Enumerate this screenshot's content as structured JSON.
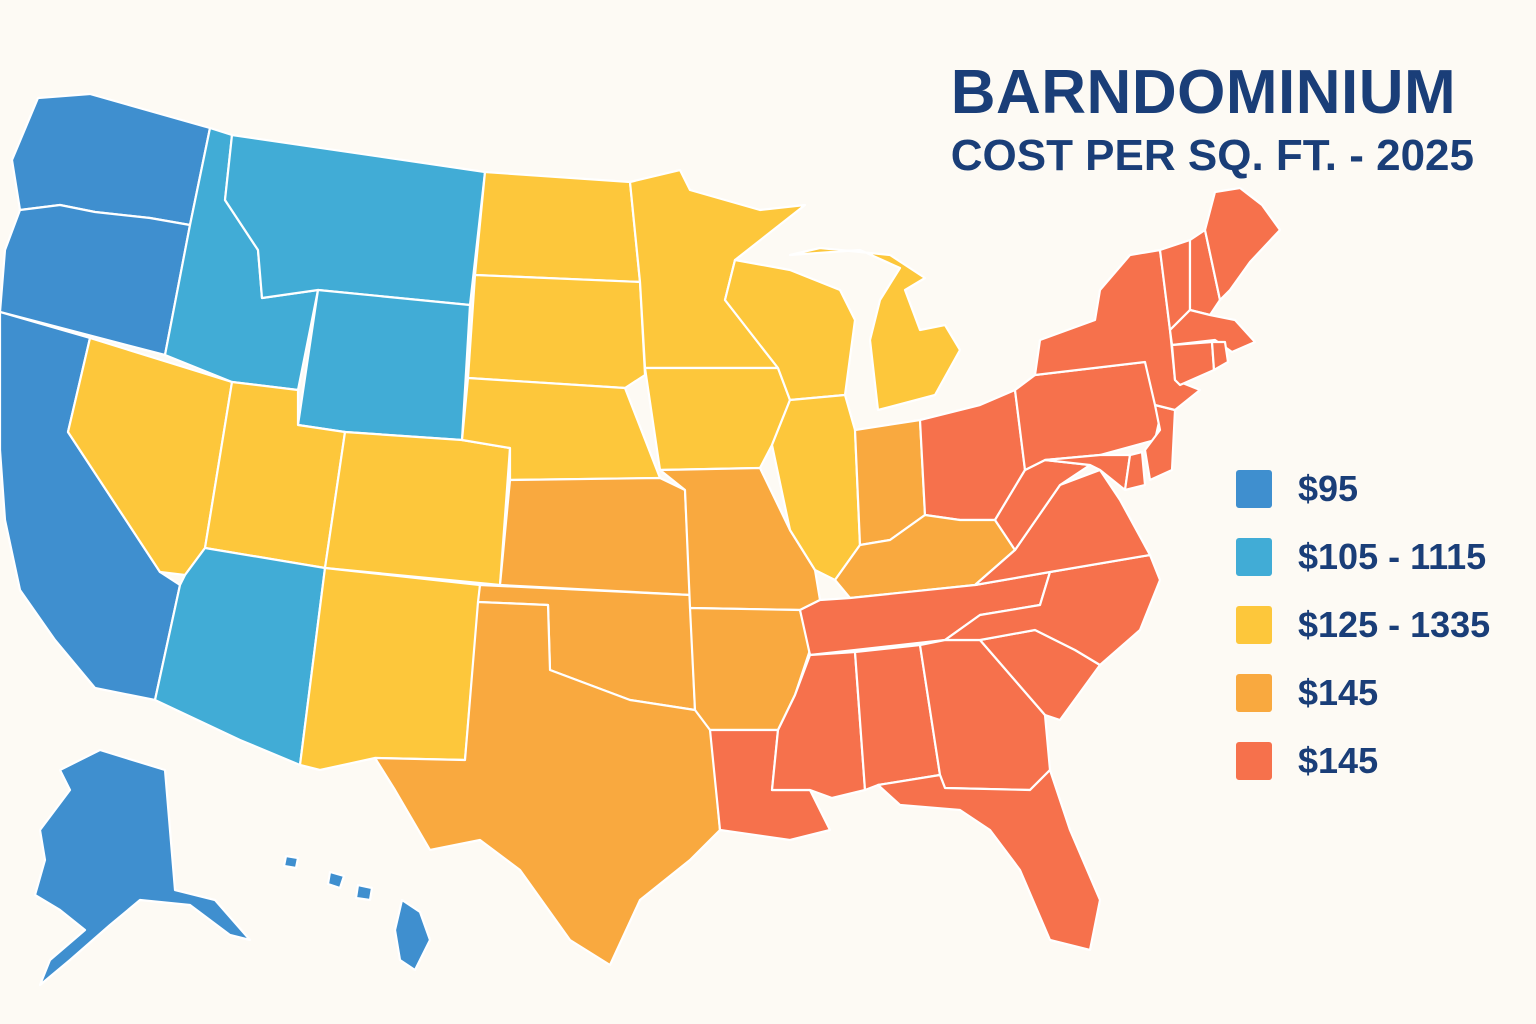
{
  "title": {
    "line1": "BARNDOMINIUM",
    "line2": "COST PER SQ. FT. - 2025"
  },
  "colors": {
    "tier1": "#3f8fcf",
    "tier2": "#41acd6",
    "tier3": "#fdc73b",
    "tier4": "#f9a93f",
    "tier5": "#f6714c"
  },
  "legend": [
    {
      "label": "$95",
      "color": "#3f8fcf"
    },
    {
      "label": "$105 - 1115",
      "color": "#41acd6"
    },
    {
      "label": "$125 - 1335",
      "color": "#fdc73b"
    },
    {
      "label": "$145",
      "color": "#f9a93f"
    },
    {
      "label": "$145",
      "color": "#f6714c"
    }
  ],
  "regions": [
    {
      "name": "Washington",
      "tier": 1
    },
    {
      "name": "Oregon",
      "tier": 1
    },
    {
      "name": "California",
      "tier": 1
    },
    {
      "name": "Alaska",
      "tier": 1
    },
    {
      "name": "Hawaii",
      "tier": 1
    },
    {
      "name": "Idaho",
      "tier": 2
    },
    {
      "name": "Montana",
      "tier": 2
    },
    {
      "name": "Wyoming",
      "tier": 2
    },
    {
      "name": "Arizona",
      "tier": 2
    },
    {
      "name": "Nevada",
      "tier": 3
    },
    {
      "name": "Utah",
      "tier": 3
    },
    {
      "name": "Colorado",
      "tier": 3
    },
    {
      "name": "New Mexico",
      "tier": 3
    },
    {
      "name": "North Dakota",
      "tier": 3
    },
    {
      "name": "South Dakota",
      "tier": 3
    },
    {
      "name": "Nebraska",
      "tier": 3
    },
    {
      "name": "Minnesota",
      "tier": 3
    },
    {
      "name": "Iowa",
      "tier": 3
    },
    {
      "name": "Wisconsin",
      "tier": 3
    },
    {
      "name": "Michigan",
      "tier": 3
    },
    {
      "name": "Illinois",
      "tier": 3
    },
    {
      "name": "Kansas",
      "tier": 4
    },
    {
      "name": "Oklahoma",
      "tier": 4
    },
    {
      "name": "Texas",
      "tier": 4
    },
    {
      "name": "Missouri",
      "tier": 4
    },
    {
      "name": "Arkansas",
      "tier": 4
    },
    {
      "name": "Indiana",
      "tier": 4
    },
    {
      "name": "Kentucky",
      "tier": 4
    },
    {
      "name": "Louisiana",
      "tier": 5
    },
    {
      "name": "Mississippi",
      "tier": 5
    },
    {
      "name": "Alabama",
      "tier": 5
    },
    {
      "name": "Georgia",
      "tier": 5
    },
    {
      "name": "Florida",
      "tier": 5
    },
    {
      "name": "Tennessee",
      "tier": 5
    },
    {
      "name": "South Carolina",
      "tier": 5
    },
    {
      "name": "North Carolina",
      "tier": 5
    },
    {
      "name": "Virginia",
      "tier": 5
    },
    {
      "name": "West Virginia",
      "tier": 5
    },
    {
      "name": "Ohio",
      "tier": 5
    },
    {
      "name": "Pennsylvania",
      "tier": 5
    },
    {
      "name": "New York",
      "tier": 5
    },
    {
      "name": "New Jersey",
      "tier": 5
    },
    {
      "name": "Delaware",
      "tier": 5
    },
    {
      "name": "Maryland",
      "tier": 5
    },
    {
      "name": "Connecticut",
      "tier": 5
    },
    {
      "name": "Rhode Island",
      "tier": 5
    },
    {
      "name": "Massachusetts",
      "tier": 5
    },
    {
      "name": "Vermont",
      "tier": 5
    },
    {
      "name": "New Hampshire",
      "tier": 5
    },
    {
      "name": "Maine",
      "tier": 5
    }
  ]
}
